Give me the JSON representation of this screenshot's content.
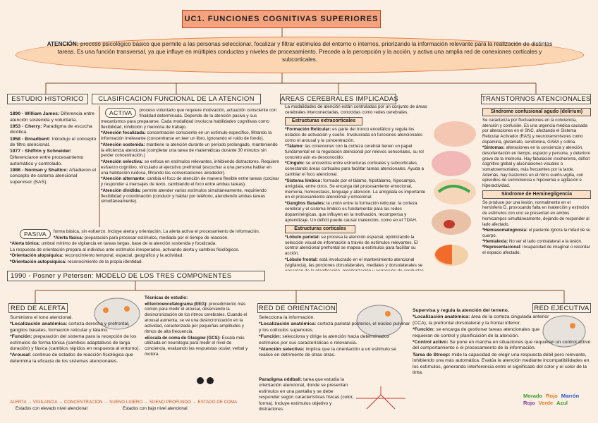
{
  "header": {
    "title": "UC1. FUNCIONES COGNITIVAS SUPERIORES"
  },
  "attention": {
    "term": "ATENCIÓN:",
    "text": " proceso psicológico básico que permite a las personas seleccionar, focalizar y filtrar estímulos del entorno o internos, priorizando la información relevante para la realización de distintas tareas. Es una función transversal, ya que influye en múltiples conductas y niveles de procesamiento. Precede a la percepción y la acción, y activa una amplia red de conexiones corticales y subcorticales."
  },
  "historico": {
    "title": "ESTUDIO HISTORICO",
    "items": [
      {
        "term": "1890 - William James:",
        "text": " Diferencia entre atención sostenida y voluntaria."
      },
      {
        "term": "1953 - Cherry:",
        "text": " Paradigma de escucha dicótica."
      },
      {
        "term": "1958 - Broadbent:",
        "text": " Introdujo el concepto de filtro atencional."
      },
      {
        "term": "1977 - Shiffrin y Schneider:",
        "text": " Diferenciaron entre procesamiento automático y controlado."
      },
      {
        "term": "1986 - Norman y Shallice:",
        "text": " Añadieron el concepto de sistema atencional supervisor (SAS)."
      }
    ]
  },
  "clasificacion": {
    "title": "CLASIFICACION FUNCIONAL DE LA ATENCION",
    "activa": {
      "label": "ACTIVA",
      "intro": "proceso voluntario que requiere motivación, actuación consciente con finalidad determinada. Depende de la atención pasiva y sus mecanismos para prepararse. Cada modalidad involucra habilidades cognitivas como flexibilidad, inhibición y memoria de trabajo.",
      "items": [
        {
          "term": "*Atención focalizada:",
          "text": " concentración consciente en un estímulo específico, filtrando la información irrelevante (concentrarse en leer un libro, ignorando el ruido de fondo)."
        },
        {
          "term": "*Atención sostenida:",
          "text": " mantiene la atención durante un período prolongado, manteniendo la eficiencia atencional (completar una tarea de matemáticas durante 30 minutos sin perder concentración.)"
        },
        {
          "term": "*Atención selectiva:",
          "text": " se enfoca en estímulos relevantes, inhibiendo distractores. Requiere esfuerzo cognitivo, vinculado al ejecutivo prefrontal (escuchar a una persona hablar en una habitación ruidosa, filtrando las conversaciones alrededor)."
        },
        {
          "term": "*Atención alternante:",
          "text": " cambia el foco de atención de manera flexible entre tareas (cocinar y responder a mensajes de texto, cambiando el foco entre ambas tareas)."
        },
        {
          "term": "*Atención dividida:",
          "text": " permite atender varios estímulos simultáneamente, requiriendo flexibilidad y coordinación (conducir y hablar por teléfono, atendiendo ambas tareas simultáneamente)."
        }
      ]
    },
    "pasiva": {
      "label": "PASIVA",
      "intro": "forma básica, sin esfuerzo. Incluye alerta y orientación. La alerta activa el procesamiento de información.",
      "items": [
        {
          "term": "*Alerta fásica:",
          "text": " preparación para procesar estímulos, mediada por el tiempo de reacción."
        },
        {
          "term": "*Alerta tónica:",
          "text": " umbral mínimo de vigilancia en tareas largas, base de la atención sostenida y focalizada."
        },
        {
          "text": "La respuesta de orientación prepara al individuo ante estímulos inesperados, activando alerta y cambios fisiológicos."
        },
        {
          "term": "*Orientación alopsíquica:",
          "text": " reconocimiento temporal, espacial, geográfico y la actividad."
        },
        {
          "term": "*Orientación autopsíquica:",
          "text": " reconocimiento de la propia identidad."
        }
      ]
    }
  },
  "areas": {
    "title": "AREAS CEREBRALES IMPLICADAS",
    "intro": "La modalidades de atención están controladas por un conjunto de áreas cerebrales interconectadas, conocidas como redes cerebrales.",
    "extracorticales": {
      "label": "Estructuras extracorticales",
      "items": [
        {
          "term": "*Formación Reticular:",
          "text": " es parte del tronco encefálico y regula los estados de activación y sueño. Involucrada en funciones atencionales como el arousal y la concentración."
        },
        {
          "term": "*Tálamo:",
          "text": " las conexiones con la corteza cerebral tienen un papel fundamental en la regulación atencional por relevos sensoriales, su rol concreto aún es desconocido."
        },
        {
          "term": "*Cíngulo:",
          "text": " se encuentra entre estructuras corticales y subcorticales, conectando áreas corticales para facilitar tareas atencionales. Ayuda a cambiar el foco atencional."
        },
        {
          "term": "*Sistema límbico:",
          "text": " formado por el tálamo, hipotálamo, hipocampo, amígdala, entre otros. Se encarga del procesamiento emocional, memoria, homeostasis, lenguaje y atención. La amígdala es importante en el procesamiento atencional y emocional."
        },
        {
          "term": "*Ganglios Basales:",
          "text": " la unión entre la formación reticular, la corteza cerebral y el sistema límbico es fundamental para las redes dopaminérgicas, que influyen en la motivación, recompensa y aprendizaje. Un déficit puede causar inatención, como en el TDAH."
        }
      ]
    },
    "corticales": {
      "label": "Estructuras corticales",
      "items": [
        {
          "term": "*Lóbulo parietal:",
          "text": " se procesa la atención espacial, optimizando la selección visual de información a través de estímulos relevantes. El control atencional prefrontal se mapea a estímulos para facilitar su acción."
        },
        {
          "term": "*Lóbulo frontal:",
          "text": " está involucrado en el mantenimiento atencional (vigilancia), las porciones dorsolaterales, mediales y dorsolaterales se encargan de la planificación, monitorización y corrección de conductas atencionales."
        }
      ]
    }
  },
  "trastornos": {
    "title": "TRANSTORNOS ATENCIONALES",
    "delirium": {
      "title": "Síndrome confusional agudo (delirium)",
      "items": [
        {
          "text": "Se caracteriza por fluctuaciones en la conciencia, atención y confusión. Es una urgencia médica causada por alteraciones en el SNC, afectando el Sistema Reticular Activador (RAS) y neurotransmisores como dopamina, glutamato, serotonina, GABA y colina."
        },
        {
          "term": "*Síntomas:",
          "text": " alteraciones en la conciencia y atención, desorientación en tiempo, espacio y persona, y deterioro grave de la memoria. Hay fabulación incoherente, déficit cognitivo global y alucinaciones visuales o somatosensoriales, más frecuentes por la tarde. Además, hay trastornos en el ritmo sueño-vigilia, con episodios de somnolencia o hipoxemia e agitación e hiperactividad."
        }
      ]
    },
    "heminegligencia": {
      "title": "Síndrome de Heminegligencia",
      "items": [
        {
          "text": "Se produce por una lesión, normalmente en el hemisferio D, provocando falta en inatención y extinción de estímulos con uno se presentan en ambos hemicampos simultáneamente, dejando de responder al lado afectado."
        },
        {
          "term": "*Hemiasomatognosia:",
          "text": " el paciente ignora la mitad de su cuerpo."
        },
        {
          "term": "*Hemialexia:",
          "text": " No ver el lado contralateral a la lesión."
        },
        {
          "term": "*Representacional:",
          "text": " Incapacidad de imaginar o recordar el espacio afectado."
        }
      ]
    }
  },
  "model": {
    "title": "1990 - Posner y Petersen: MODELO DE LOS TRES COMPONENTES"
  },
  "alerta": {
    "title": "RED DE ALERTA",
    "items": [
      {
        "text": "Suministra el tono atencional."
      },
      {
        "term": "*Localización anatómica:",
        "text": " corteza derecha y prefrontal, ganglios basales, formación reticular y tálamo."
      },
      {
        "term": "*Función:",
        "text": " preparación del sistema para la recepción de los estímulos de forma tónica (cambios adaptativos de larga duración) y fásica (cambios rápidos en respuesta al entorno)."
      },
      {
        "term": "*Arousal:",
        "text": " continuo de estados de reacción fisiológica que determina la eficacia de los sistemas atencionales."
      }
    ],
    "scale": "ALERTA → VIGILANCIA → CONCENTRACIÓN → SUEÑO LIGERO → SUEÑO PROFUNDO → ESTADO DE COMA",
    "high": "Estados con elevado nivel atencional",
    "low": "Estados con bajo nivel atencional"
  },
  "tecnicas": {
    "title": "Técnicas de estudio:",
    "items": [
      {
        "term": "●Electroencefalograma (EEG):",
        "text": " procedimiento más común para medir el arousal, observando la desincronización de los ritmos cerebrales. Cuando el arousal aumenta, se ve una desincronización en la actividad, caracterizada por pequeñas amplitudes y ritmos de alta frecuencia."
      },
      {
        "term": "●Escala de coma de Glasgow (GCS):",
        "text": " Escala más utilizada en neurología para medir el nivel de conciencia, evaluando las respuestas ocular, verbal y motora."
      }
    ]
  },
  "orientacion": {
    "title": "RED DE ORIENTACION",
    "items": [
      {
        "text": "Selecciona la información."
      },
      {
        "term": "*Localización anatómica:",
        "text": " corteza parietal posterior, el núcleo pulvinar y los colículos superiores."
      },
      {
        "term": "*Función:",
        "text": " selecciona y dirige la atención hacia determinados estímulos por sus características o relevancia."
      },
      {
        "term": "*Atención selectiva:",
        "text": " implica que la orientación a un estímulo se realice en detrimento de otras otras."
      }
    ],
    "paradigma": [
      {
        "term": "Paradigma oddball:",
        "text": " tarea que estudia la orientación atencional, donde se presentan estímulos en una pantalla y se debe responder según características físicas (color, forma). Incluye estímulos objetivo y distractores."
      }
    ]
  },
  "ejecutiva": {
    "title": "RED EJECUTIVA",
    "items": [
      {
        "term": "Supervisa y regula la atención del terreno.",
        "text": ""
      },
      {
        "term": "*Localización anatómica:",
        "text": " área de la corteza cingulada anterior (CCA), la prefrontal dorsolateral y la frontal inferior."
      },
      {
        "term": "*Función:",
        "text": " se encarga de gestionar tareas atencionales que requieran de control y planificación de la atención."
      },
      {
        "term": "*Control activo:",
        "text": " Se pone en marcha en situaciones que requieran un control activo del comportamiento o el procesamiento de la información."
      },
      {
        "term": "Tarea de Stroop:",
        "text": " mide la capacidad de elegir una respuesta débil pero relevante, inhibiendo una más automática. Evalúa la atención mediante incompatibilidades en los estímulos, generando interferencia entre el significado del color y el color de la tinta."
      }
    ],
    "stroop": [
      {
        "text": "Morado",
        "color": "#3a9a2a"
      },
      {
        "text": "Rojo",
        "color": "#e07a1f"
      },
      {
        "text": "Marrón",
        "color": "#2a56c8"
      },
      {
        "text": "Rojo",
        "color": "#7a3aa8"
      },
      {
        "text": "Verde",
        "color": "#e07a1f"
      },
      {
        "text": "Azul",
        "color": "#3a9a2a"
      }
    ]
  }
}
